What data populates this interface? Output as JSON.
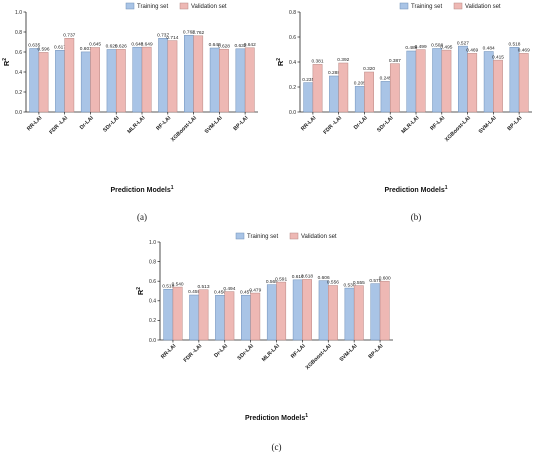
{
  "colors": {
    "training": "#a9c4e6",
    "validation": "#eeb8b4",
    "training_stroke": "#6f8fb8",
    "validation_stroke": "#b88783"
  },
  "chart_data": [
    {
      "type": "bar",
      "panel_label": "(a)",
      "categories": [
        "RR-LAI",
        "FDR -LAI",
        "Dr-LAI",
        "SDr-LAI",
        "MLR-LAI",
        "RF-LAI",
        "XGBoost-LAI",
        "SVM-LAI",
        "BP-LAI"
      ],
      "series": [
        {
          "name": "Training set",
          "values": [
            0.635,
            0.617,
            0.601,
            0.625,
            0.648,
            0.737,
            0.767,
            0.64,
            0.632
          ],
          "labels": [
            "0.635",
            "0.617",
            "0.601",
            "0.625",
            "0.648",
            "0.737",
            "0.767",
            "0.640",
            "0.632"
          ]
        },
        {
          "name": "Validation set",
          "values": [
            0.596,
            0.737,
            0.645,
            0.626,
            0.649,
            0.714,
            0.762,
            0.628,
            0.642
          ],
          "labels": [
            "0.596",
            "0.737",
            "0.645",
            "0.626",
            "0.649",
            "0.714",
            "0.762",
            "0.628",
            "0.642"
          ]
        }
      ],
      "xlabel": "Prediction Models",
      "xlabel_sup": "1",
      "ylabel": "R",
      "ylabel_sup": "2",
      "ylim": [
        0,
        1.0
      ],
      "yticks": [
        "0.0",
        "0.2",
        "0.4",
        "0.6",
        "0.8",
        "1.0"
      ],
      "legend": "top-right"
    },
    {
      "type": "bar",
      "panel_label": "(b)",
      "categories": [
        "RR-LAI",
        "FDR -LAI",
        "Dr-LAI",
        "SDr-LAI",
        "MLR-LAI",
        "RF-LAI",
        "XGBoost-LAI",
        "SVM-LAI",
        "BP-LAI"
      ],
      "series": [
        {
          "name": "Training set",
          "values": [
            0.235,
            0.288,
            0.205,
            0.245,
            0.488,
            0.508,
            0.527,
            0.484,
            0.518
          ],
          "labels": [
            "0.235",
            "0.288",
            "0.205",
            "0.245",
            "0.488",
            "0.508",
            "0.527",
            "0.484",
            "0.518"
          ]
        },
        {
          "name": "Validation set",
          "values": [
            0.381,
            0.392,
            0.32,
            0.387,
            0.499,
            0.495,
            0.469,
            0.415,
            0.469
          ],
          "labels": [
            "0.381",
            "0.392",
            "0.320",
            "0.387",
            "0.499",
            "0.495",
            "0.469",
            "0.415",
            "0.469"
          ]
        }
      ],
      "xlabel": "Prediction Models",
      "xlabel_sup": "1",
      "ylabel": "R",
      "ylabel_sup": "2",
      "ylim": [
        0,
        0.8
      ],
      "yticks": [
        "0.0",
        "0.2",
        "0.4",
        "0.6",
        "0.8"
      ],
      "legend": "top-right"
    },
    {
      "type": "bar",
      "panel_label": "(c)",
      "categories": [
        "RR-LAI",
        "FDR -LAI",
        "Dr-LAI",
        "SDr-LAI",
        "MLR-LAI",
        "RF-LAI",
        "XGBoost-LAI",
        "SVM-LAI",
        "BP-LAI"
      ],
      "series": [
        {
          "name": "Training set",
          "values": [
            0.518,
            0.459,
            0.456,
            0.457,
            0.565,
            0.614,
            0.606,
            0.53,
            0.575
          ],
          "labels": [
            "0.518",
            "0.459",
            "0.456",
            "0.457",
            "0.565",
            "0.614",
            "0.606",
            "0.530",
            "0.575"
          ]
        },
        {
          "name": "Validation set",
          "values": [
            0.54,
            0.513,
            0.494,
            0.479,
            0.591,
            0.618,
            0.556,
            0.555,
            0.6
          ],
          "labels": [
            "0.540",
            "0.513",
            "0.494",
            "0.479",
            "0.591",
            "0.618",
            "0.556",
            "0.555",
            "0.600"
          ]
        }
      ],
      "xlabel": "Prediction Models",
      "xlabel_sup": "1",
      "ylabel": "R",
      "ylabel_sup": "2",
      "ylim": [
        0,
        1.0
      ],
      "yticks": [
        "0.0",
        "0.2",
        "0.4",
        "0.6",
        "0.8",
        "1.0"
      ],
      "legend": "top-right"
    }
  ]
}
